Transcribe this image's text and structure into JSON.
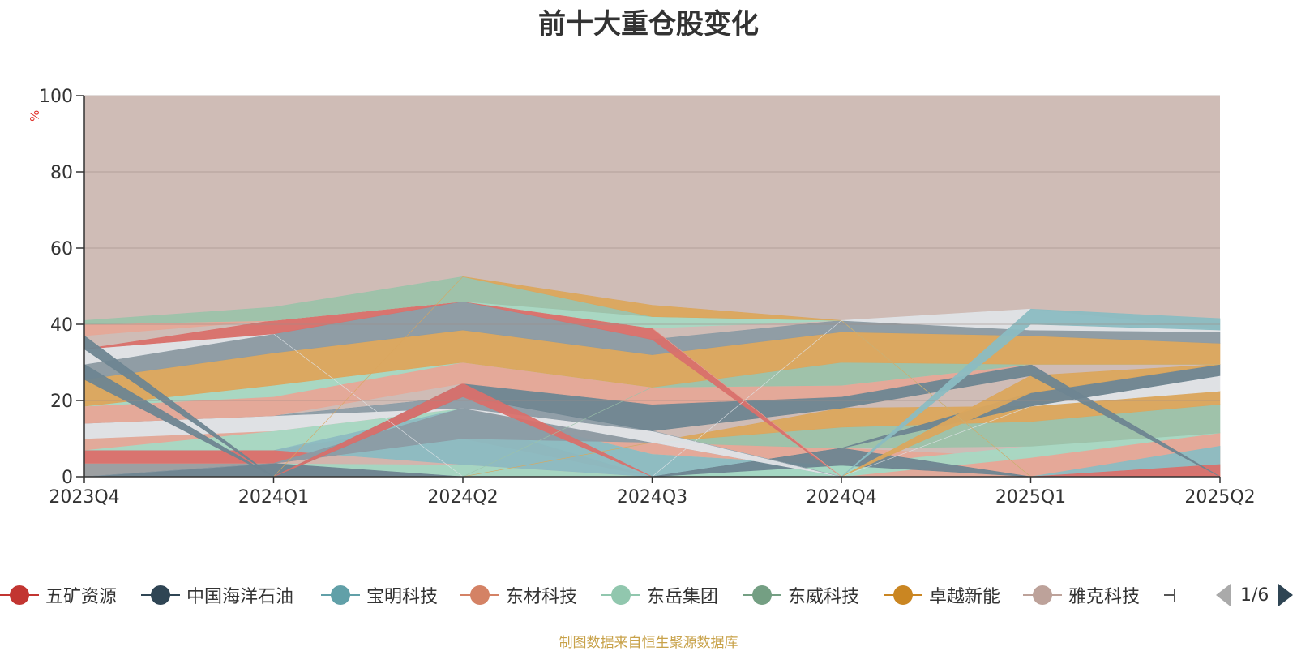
{
  "title": "前十大重仓股变化",
  "unit_label": "%",
  "source": "制图数据来自恒生聚源数据库",
  "pager": {
    "text": "1/6"
  },
  "legend": [
    {
      "name": "五矿资源",
      "color": "#c23531"
    },
    {
      "name": "中国海洋石油",
      "color": "#2f4554"
    },
    {
      "name": "宝明科技",
      "color": "#61a0a8"
    },
    {
      "name": "东材科技",
      "color": "#d48265"
    },
    {
      "name": "东岳集团",
      "color": "#91c7ae"
    },
    {
      "name": "东威科技",
      "color": "#749f83"
    },
    {
      "name": "卓越新能",
      "color": "#ca8622"
    },
    {
      "name": "雅克科技",
      "color": "#bda29a"
    }
  ],
  "chart_data": {
    "type": "area",
    "title": "前十大重仓股变化",
    "ylabel": "%",
    "ylim": [
      0,
      100
    ],
    "yticks": [
      0,
      20,
      40,
      60,
      80,
      100
    ],
    "categories": [
      "2023Q4",
      "2024Q1",
      "2024Q2",
      "2024Q3",
      "2024Q4",
      "2025Q1",
      "2025Q2"
    ],
    "grid": true,
    "layers": [
      {
        "color": "#9a9ea1",
        "opacity": 0.95,
        "lower": [
          0,
          0,
          0,
          0,
          0,
          0,
          0
        ],
        "upper": [
          3.5,
          3.5,
          3.2,
          0,
          0,
          0,
          0
        ]
      },
      {
        "color": "#a7d8c3",
        "opacity": 0.95,
        "lower": [
          3.5,
          3.5,
          0,
          0,
          0,
          0,
          0
        ],
        "upper": [
          3.5,
          3.5,
          3.2,
          0,
          0,
          0,
          0
        ]
      },
      {
        "color": "#d3b4ad",
        "opacity": 0.95,
        "lower": [
          3.5,
          3.5,
          3.2,
          0,
          0,
          0,
          0
        ],
        "upper": [
          3.5,
          3.5,
          10,
          0,
          0,
          0,
          0
        ]
      },
      {
        "color": "#6e8591",
        "opacity": 0.95,
        "lower": [
          0,
          0,
          0,
          0,
          0,
          0,
          0
        ],
        "upper": [
          0,
          3.5,
          0,
          0,
          0,
          0,
          0
        ]
      },
      {
        "color": "#d9706b",
        "opacity": 0.95,
        "lower": [
          3.5,
          3.5,
          10,
          0,
          0,
          0,
          0
        ],
        "upper": [
          7,
          7,
          14.5,
          0,
          0,
          0,
          0
        ]
      },
      {
        "color": "#8c9ba4",
        "opacity": 0.95,
        "lower": [
          7,
          7,
          14.5,
          0,
          0,
          0,
          0
        ],
        "upper": [
          7,
          7,
          14.5,
          0,
          0,
          0,
          0
        ]
      },
      {
        "color": "#8bbcc2",
        "opacity": 0.95,
        "lower": [
          7,
          7,
          3.2,
          0,
          0,
          0,
          0
        ],
        "upper": [
          7,
          7,
          18,
          6,
          3,
          0,
          0
        ]
      },
      {
        "color": "#a7d8c3",
        "opacity": 0.95,
        "lower": [
          7,
          7,
          18,
          6,
          3,
          0,
          0
        ],
        "upper": [
          10,
          12,
          18,
          6,
          3,
          0,
          0
        ]
      },
      {
        "color": "#e5a898",
        "opacity": 0.95,
        "lower": [
          7,
          12,
          18,
          6,
          3,
          0,
          0
        ],
        "upper": [
          10,
          12,
          18,
          9,
          7.5,
          5,
          1
        ]
      },
      {
        "color": "#e5a898",
        "opacity": 0.95,
        "lower": [
          0,
          0,
          0,
          0,
          0,
          0,
          0
        ],
        "upper": [
          0,
          0,
          0,
          0,
          0,
          5,
          11.5
        ]
      },
      {
        "color": "#8bbcc2",
        "opacity": 0.95,
        "lower": [
          0,
          0,
          0,
          0,
          0,
          0,
          1
        ],
        "upper": [
          0,
          0,
          0,
          0,
          0,
          0,
          8
        ]
      },
      {
        "color": "#d9706b",
        "opacity": 0.95,
        "lower": [
          0,
          0,
          0,
          0,
          0,
          0,
          0
        ],
        "upper": [
          0,
          0,
          0,
          0,
          0,
          0,
          3.2
        ]
      },
      {
        "color": "#a7d8c3",
        "opacity": 0.95,
        "lower": [
          0,
          0,
          0,
          0,
          0,
          5,
          11.5
        ],
        "upper": [
          0,
          0,
          0,
          0,
          3,
          8,
          11.5
        ]
      },
      {
        "color": "#6e8591",
        "opacity": 0.95,
        "lower": [
          0,
          0,
          0,
          0,
          3,
          0,
          0
        ],
        "upper": [
          0,
          0,
          0,
          0,
          7.5,
          0,
          0
        ]
      },
      {
        "color": "#9cc2aa",
        "opacity": 0.95,
        "lower": [
          0,
          0,
          0,
          9,
          7.5,
          8,
          11.5
        ],
        "upper": [
          0,
          0,
          0,
          9,
          13,
          14.5,
          19
        ]
      },
      {
        "color": "#dba65d",
        "opacity": 0.95,
        "lower": [
          0,
          0,
          0,
          9,
          13,
          14.5,
          19
        ],
        "upper": [
          0,
          0,
          0,
          9,
          18,
          18.5,
          22.5
        ]
      },
      {
        "color": "#dfe3e7",
        "opacity": 0.95,
        "lower": [
          0,
          0,
          0,
          0,
          0,
          18.5,
          22.5
        ],
        "upper": [
          0,
          0,
          0,
          0,
          0,
          18.5,
          26.5
        ]
      },
      {
        "color": "#6e8591",
        "opacity": 0.95,
        "lower": [
          0,
          0,
          0,
          0,
          7.5,
          18.5,
          26.5
        ],
        "upper": [
          0,
          0,
          0,
          0,
          7.5,
          22,
          29.5
        ]
      },
      {
        "color": "#dba65d",
        "opacity": 0.95,
        "lower": [
          0,
          0,
          0,
          0,
          0,
          22,
          29.5
        ],
        "upper": [
          0,
          0,
          0,
          0,
          0,
          26.5,
          29.5
        ]
      },
      {
        "color": "#d3b4ad",
        "opacity": 0.95,
        "lower": [
          0,
          0,
          0,
          0,
          0,
          0,
          0
        ],
        "upper": [
          0,
          0,
          0,
          0,
          0,
          0,
          0
        ]
      },
      {
        "color": "#8c9ba4",
        "opacity": 0.95,
        "lower": [
          0,
          3.5,
          10,
          9,
          0,
          0,
          0
        ],
        "upper": [
          0,
          3.5,
          18,
          9,
          0,
          0,
          0
        ]
      },
      {
        "color": "#dfe3e7",
        "opacity": 0.95,
        "lower": [
          10,
          12,
          18,
          9,
          0,
          0,
          0
        ],
        "upper": [
          14,
          16,
          21,
          12,
          0,
          0,
          0
        ]
      },
      {
        "color": "#8c9ba4",
        "opacity": 0.95,
        "lower": [
          14,
          16,
          18,
          12,
          0,
          0,
          0
        ],
        "upper": [
          14,
          16,
          21,
          12,
          0,
          0,
          0
        ]
      },
      {
        "color": "#6e8591",
        "opacity": 0.95,
        "lower": [
          0,
          0,
          21,
          12,
          18,
          26.5,
          0
        ],
        "upper": [
          0,
          0,
          24.5,
          19,
          21,
          29.5,
          0
        ]
      },
      {
        "color": "#d9706b",
        "opacity": 0.95,
        "lower": [
          0,
          0,
          21,
          0,
          0,
          0,
          0
        ],
        "upper": [
          0,
          0,
          24.5,
          0,
          0,
          0,
          0
        ]
      },
      {
        "color": "#e5a898",
        "opacity": 0.95,
        "lower": [
          14,
          16,
          24.5,
          19,
          21,
          29.5,
          29.5
        ],
        "upper": [
          18.5,
          21,
          30,
          23.5,
          24,
          29.5,
          29.5
        ]
      },
      {
        "color": "#a7d8c3",
        "opacity": 0.95,
        "lower": [
          18.5,
          21,
          30,
          23.5,
          24,
          29.5,
          29.5
        ],
        "upper": [
          18.5,
          24,
          30,
          23.5,
          24,
          29.5,
          29.5
        ]
      },
      {
        "color": "#9cc2aa",
        "opacity": 0.95,
        "lower": [
          0,
          0,
          0,
          23.5,
          24,
          29.5,
          29.5
        ],
        "upper": [
          0,
          0,
          0,
          23.5,
          30,
          29.5,
          29.5
        ]
      },
      {
        "color": "#dba65d",
        "opacity": 0.95,
        "lower": [
          18.5,
          24,
          30,
          23.5,
          30,
          29.5,
          29.5
        ],
        "upper": [
          25.5,
          32.5,
          38.5,
          32,
          38,
          37,
          35
        ]
      },
      {
        "color": "#8c9ba4",
        "opacity": 0.95,
        "lower": [
          25.5,
          32.5,
          38.5,
          32,
          38,
          37,
          35
        ],
        "upper": [
          29.5,
          37.5,
          46,
          36,
          41,
          38.5,
          38
        ]
      },
      {
        "color": "#6e8591",
        "opacity": 0.95,
        "lower": [
          25.5,
          0,
          0,
          0,
          0,
          0,
          0
        ],
        "upper": [
          29.5,
          0,
          0,
          0,
          0,
          0,
          0
        ]
      },
      {
        "color": "#dfe3e7",
        "opacity": 0.95,
        "lower": [
          29.5,
          37.5,
          0,
          0,
          0,
          0,
          0
        ],
        "upper": [
          33.5,
          37.5,
          0,
          0,
          0,
          0,
          0
        ]
      },
      {
        "color": "#d9706b",
        "opacity": 0.95,
        "lower": [
          33.5,
          37.5,
          46,
          36,
          0,
          0,
          0
        ],
        "upper": [
          33.5,
          41,
          46,
          39,
          0,
          0,
          0
        ]
      },
      {
        "color": "#6e8591",
        "opacity": 0.95,
        "lower": [
          33.5,
          0,
          0,
          0,
          0,
          0,
          0
        ],
        "upper": [
          37,
          0,
          0,
          0,
          0,
          0,
          0
        ]
      },
      {
        "color": "#e5a898",
        "opacity": 0.95,
        "lower": [
          37,
          41,
          46,
          39,
          0,
          0,
          0
        ],
        "upper": [
          40,
          41,
          46,
          39,
          0,
          0,
          0
        ]
      },
      {
        "color": "#a7d8c3",
        "opacity": 0.95,
        "lower": [
          40,
          41,
          46,
          39,
          41,
          0,
          0
        ],
        "upper": [
          40,
          41,
          46,
          42,
          41,
          0,
          0
        ]
      },
      {
        "color": "#9cc2aa",
        "opacity": 0.95,
        "lower": [
          40,
          41,
          46,
          42,
          41,
          0,
          0
        ],
        "upper": [
          41,
          44.5,
          52.5,
          42,
          41,
          0,
          0
        ]
      },
      {
        "color": "#dba65d",
        "opacity": 0.95,
        "lower": [
          0,
          0,
          52.5,
          42,
          41,
          0,
          0
        ],
        "upper": [
          0,
          0,
          52.5,
          45,
          41,
          0,
          0
        ]
      },
      {
        "color": "#dfe3e7",
        "opacity": 0.95,
        "lower": [
          0,
          0,
          0,
          0,
          41,
          38.5,
          38
        ],
        "upper": [
          0,
          0,
          0,
          0,
          41,
          44,
          38.5
        ]
      },
      {
        "color": "#8bbcc2",
        "opacity": 0.95,
        "lower": [
          0,
          0,
          0,
          0,
          0,
          40,
          38.5
        ],
        "upper": [
          0,
          0,
          0,
          0,
          0,
          44,
          41.5
        ]
      }
    ]
  }
}
